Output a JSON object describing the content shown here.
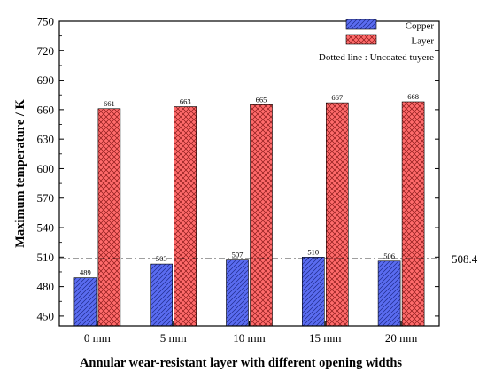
{
  "chart_data": {
    "type": "bar",
    "categories": [
      "0 mm",
      "5 mm",
      "10 mm",
      "15 mm",
      "20 mm"
    ],
    "series": [
      {
        "name": "Copper",
        "values": [
          489,
          503,
          507,
          510,
          506
        ],
        "color": "#5a6cf0",
        "pattern": "diagonal-hatch"
      },
      {
        "name": "Layer",
        "values": [
          661,
          663,
          665,
          667,
          668
        ],
        "color": "#ff6b6b",
        "pattern": "cross-hatch"
      }
    ],
    "data_labels": {
      "Copper": [
        "489",
        "503",
        "507",
        "510",
        "506"
      ],
      "Layer": [
        "661",
        "663",
        "665",
        "667",
        "668"
      ]
    },
    "ylabel": "Maximum temperature / K",
    "xlabel": "Annular wear-resistant layer with different opening widths",
    "ylim": [
      440,
      750
    ],
    "yticks": [
      450,
      480,
      510,
      540,
      570,
      600,
      630,
      660,
      690,
      720,
      750
    ],
    "reference_line": {
      "value": 508.4,
      "label": "508.4",
      "style": "dash-dot"
    },
    "legend_note": "Dotted line : Uncoated tuyere",
    "legend_position": "top-right",
    "grid": false
  }
}
